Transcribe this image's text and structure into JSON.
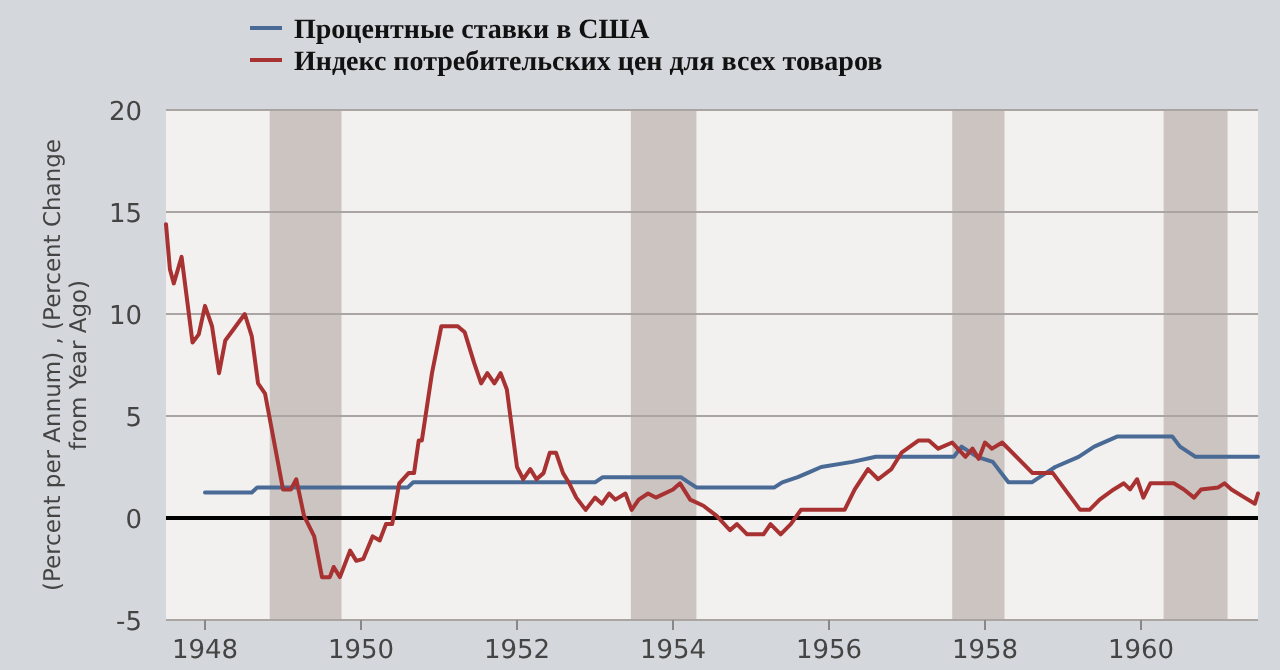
{
  "chart_data": {
    "type": "line",
    "ylabel": "(Percent per Annum) , (Percent Change from Year Ago)",
    "legend": "top left",
    "grid": "y",
    "xlim": [
      1947.5,
      1961.5
    ],
    "xticks": [
      1948,
      1950,
      1952,
      1954,
      1956,
      1958,
      1960
    ],
    "ylim": [
      -5,
      20
    ],
    "yticks": [
      -5,
      0,
      5,
      10,
      15,
      20
    ],
    "series": [
      {
        "name": "Процентные ставки в США",
        "color": "#4a6a96",
        "x": [
          1948.0,
          1948.6,
          1948.67,
          1950.6,
          1950.67,
          1953.0,
          1953.1,
          1954.1,
          1954.2,
          1954.3,
          1955.3,
          1955.4,
          1955.6,
          1955.75,
          1955.9,
          1956.3,
          1956.6,
          1957.6,
          1957.7,
          1957.9,
          1958.1,
          1958.2,
          1958.3,
          1958.6,
          1958.7,
          1958.9,
          1959.2,
          1959.4,
          1959.7,
          1960.4,
          1960.5,
          1960.7,
          1961.5
        ],
        "values": [
          1.25,
          1.25,
          1.5,
          1.5,
          1.75,
          1.75,
          2.0,
          2.0,
          1.75,
          1.5,
          1.5,
          1.75,
          2.0,
          2.25,
          2.5,
          2.75,
          3.0,
          3.0,
          3.5,
          3.0,
          2.75,
          2.25,
          1.75,
          1.75,
          2.0,
          2.5,
          3.0,
          3.5,
          4.0,
          4.0,
          3.5,
          3.0,
          3.0
        ]
      },
      {
        "name": "Индекс потребительских цен для всех товаров",
        "color": "#a83232",
        "x": [
          1947.5,
          1947.55,
          1947.6,
          1947.7,
          1947.84,
          1947.92,
          1948.0,
          1948.09,
          1948.18,
          1948.26,
          1948.51,
          1948.6,
          1948.68,
          1948.77,
          1949.0,
          1949.1,
          1949.17,
          1949.27,
          1949.4,
          1949.5,
          1949.6,
          1949.65,
          1949.73,
          1949.86,
          1949.94,
          1950.03,
          1950.15,
          1950.24,
          1950.32,
          1950.4,
          1950.49,
          1950.61,
          1950.68,
          1950.74,
          1950.78,
          1950.91,
          1951.03,
          1951.24,
          1951.33,
          1951.45,
          1951.54,
          1951.62,
          1951.71,
          1951.79,
          1951.87,
          1952.0,
          1952.08,
          1952.17,
          1952.25,
          1952.34,
          1952.42,
          1952.5,
          1952.59,
          1952.67,
          1952.76,
          1952.88,
          1953.0,
          1953.09,
          1953.18,
          1953.26,
          1953.39,
          1953.47,
          1953.56,
          1953.68,
          1953.78,
          1954.0,
          1954.09,
          1954.22,
          1954.39,
          1954.56,
          1954.73,
          1954.82,
          1954.95,
          1955.16,
          1955.25,
          1955.38,
          1955.51,
          1955.64,
          1956.2,
          1956.33,
          1956.5,
          1956.63,
          1956.8,
          1956.93,
          1957.15,
          1957.28,
          1957.4,
          1957.58,
          1957.75,
          1957.84,
          1957.92,
          1958.0,
          1958.09,
          1958.22,
          1958.61,
          1958.87,
          1959.22,
          1959.34,
          1959.47,
          1959.65,
          1959.78,
          1959.86,
          1959.95,
          1960.03,
          1960.12,
          1960.42,
          1960.55,
          1960.68,
          1960.77,
          1960.99,
          1961.07,
          1961.16,
          1961.33,
          1961.46,
          1961.5
        ],
        "values": [
          14.4,
          12.2,
          11.5,
          12.8,
          8.6,
          9.0,
          10.4,
          9.4,
          7.1,
          8.7,
          10.0,
          8.9,
          6.6,
          6.1,
          1.4,
          1.4,
          1.9,
          0.1,
          -0.9,
          -2.9,
          -2.9,
          -2.4,
          -2.9,
          -1.6,
          -2.1,
          -2.0,
          -0.9,
          -1.1,
          -0.3,
          -0.3,
          1.7,
          2.2,
          2.2,
          3.8,
          3.8,
          7.1,
          9.4,
          9.4,
          9.1,
          7.6,
          6.6,
          7.1,
          6.6,
          7.1,
          6.3,
          2.5,
          1.9,
          2.4,
          1.9,
          2.2,
          3.2,
          3.2,
          2.2,
          1.7,
          1.0,
          0.4,
          1.0,
          0.7,
          1.2,
          0.9,
          1.2,
          0.4,
          0.9,
          1.2,
          1.0,
          1.4,
          1.7,
          0.9,
          0.6,
          0.1,
          -0.6,
          -0.3,
          -0.8,
          -0.8,
          -0.3,
          -0.8,
          -0.3,
          0.4,
          0.4,
          1.4,
          2.4,
          1.9,
          2.4,
          3.2,
          3.8,
          3.8,
          3.4,
          3.7,
          3.0,
          3.4,
          2.9,
          3.7,
          3.4,
          3.7,
          2.2,
          2.2,
          0.4,
          0.4,
          0.9,
          1.4,
          1.7,
          1.4,
          1.9,
          1.0,
          1.7,
          1.7,
          1.4,
          1.0,
          1.4,
          1.5,
          1.7,
          1.4,
          1.0,
          0.7,
          1.2
        ]
      }
    ],
    "ref_lines": [
      {
        "axis": "y",
        "value": 0,
        "color": "#000000"
      }
    ],
    "bands": [
      {
        "axis": "x",
        "from": 1948.83,
        "to": 1949.75,
        "color": "#cbc4c0"
      },
      {
        "axis": "x",
        "from": 1953.46,
        "to": 1954.3,
        "color": "#cbc4c0"
      },
      {
        "axis": "x",
        "from": 1957.58,
        "to": 1958.25,
        "color": "#cbc4c0"
      },
      {
        "axis": "x",
        "from": 1960.29,
        "to": 1961.11,
        "color": "#cbc4c0"
      }
    ]
  }
}
